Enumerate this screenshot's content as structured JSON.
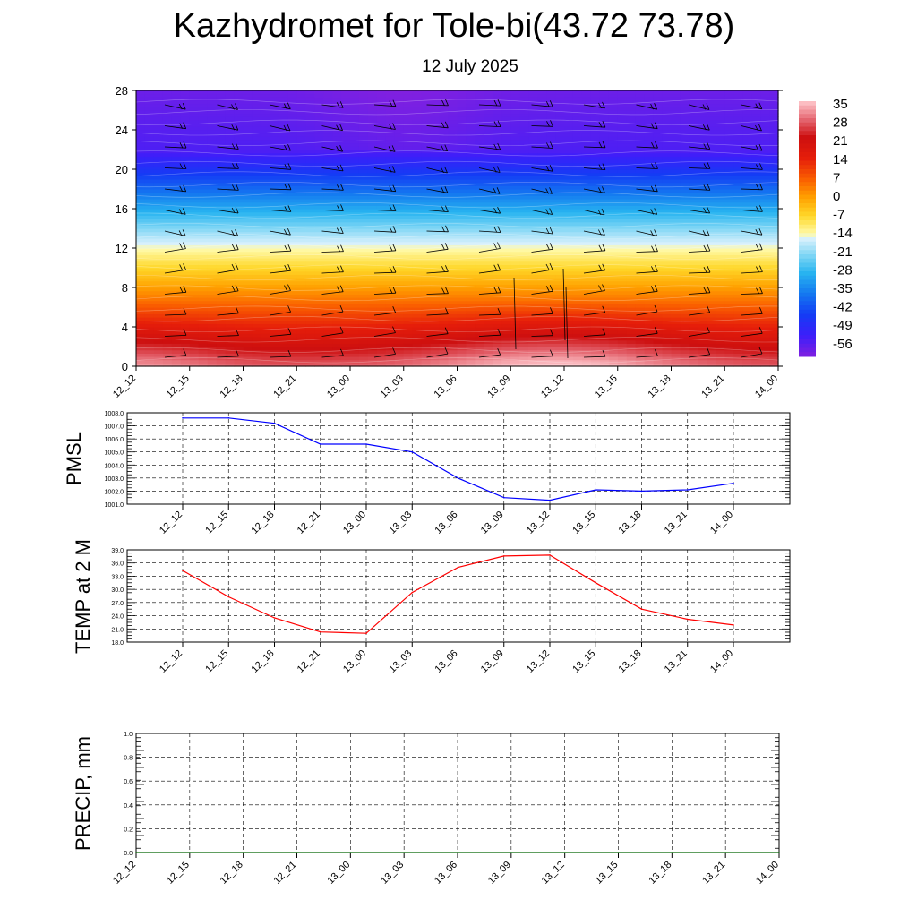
{
  "title": "Kazhydromet for Tole-bi(43.72 73.78)",
  "subtitle": "12 July 2025",
  "time_labels": [
    "12_12",
    "12_15",
    "12_18",
    "12_21",
    "13_00",
    "13_03",
    "13_06",
    "13_09",
    "13_12",
    "13_15",
    "13_18",
    "13_21",
    "14_00"
  ],
  "colors": {
    "pmsl_line": "#0000ff",
    "temp_line": "#ff0000",
    "precip_line": "#006400",
    "grid": "#000000"
  },
  "chart_data": [
    {
      "type": "heatmap",
      "name": "temperature-wind-cross-section",
      "x": [
        "12_12",
        "12_15",
        "12_18",
        "12_21",
        "13_00",
        "13_03",
        "13_06",
        "13_09",
        "13_12",
        "13_15",
        "13_18",
        "13_21",
        "14_00"
      ],
      "y_ticks": [
        0,
        4,
        8,
        12,
        16,
        20,
        24,
        28
      ],
      "ylim": [
        0,
        28
      ],
      "colorbar": {
        "labels": [
          "35",
          "28",
          "21",
          "14",
          "7",
          "0",
          "-7",
          "-14",
          "-21",
          "-28",
          "-35",
          "-42",
          "-49",
          "-56"
        ],
        "range": [
          -60,
          38
        ]
      },
      "overlay": "wind barbs"
    },
    {
      "type": "line",
      "name": "pmsl",
      "ylabel": "PMSL",
      "x": [
        "12_12",
        "12_15",
        "12_18",
        "12_21",
        "13_00",
        "13_03",
        "13_06",
        "13_09",
        "13_12",
        "13_15",
        "13_18",
        "13_21",
        "14_00"
      ],
      "values": [
        1007.6,
        1007.6,
        1007.2,
        1005.6,
        1005.6,
        1005.0,
        1003.0,
        1001.5,
        1001.3,
        1002.1,
        1002.0,
        1002.1,
        1002.6
      ],
      "ylim": [
        1001.0,
        1008.0
      ],
      "yticks": [
        "1008.0",
        "1007.0",
        "1006.0",
        "1005.0",
        "1004.0",
        "1003.0",
        "1002.0",
        "1001.0"
      ],
      "grid": true
    },
    {
      "type": "line",
      "name": "temp-2m",
      "ylabel": "TEMP at 2 M",
      "x": [
        "12_12",
        "12_15",
        "12_18",
        "12_21",
        "13_00",
        "13_03",
        "13_06",
        "13_09",
        "13_12",
        "13_15",
        "13_18",
        "13_21",
        "14_00"
      ],
      "values": [
        34.3,
        28.3,
        23.5,
        20.3,
        20.0,
        29.3,
        35.0,
        37.6,
        37.8,
        31.5,
        25.5,
        23.2,
        21.9
      ],
      "ylim": [
        18.0,
        39.0
      ],
      "yticks": [
        "39.0",
        "36.0",
        "33.0",
        "30.0",
        "27.0",
        "24.0",
        "21.0",
        "18.0"
      ],
      "grid": true
    },
    {
      "type": "line",
      "name": "precip",
      "ylabel": "PRECIP, mm",
      "x": [
        "12_12",
        "12_15",
        "12_18",
        "12_21",
        "13_00",
        "13_03",
        "13_06",
        "13_09",
        "13_12",
        "13_15",
        "13_18",
        "13_21",
        "14_00"
      ],
      "values": [
        0,
        0,
        0,
        0,
        0,
        0,
        0,
        0,
        0,
        0,
        0,
        0,
        0
      ],
      "ylim": [
        0.0,
        1.0
      ],
      "yticks": [
        "1.0",
        "0.8",
        "0.6",
        "0.4",
        "0.2",
        "0.0"
      ],
      "grid": true
    }
  ]
}
